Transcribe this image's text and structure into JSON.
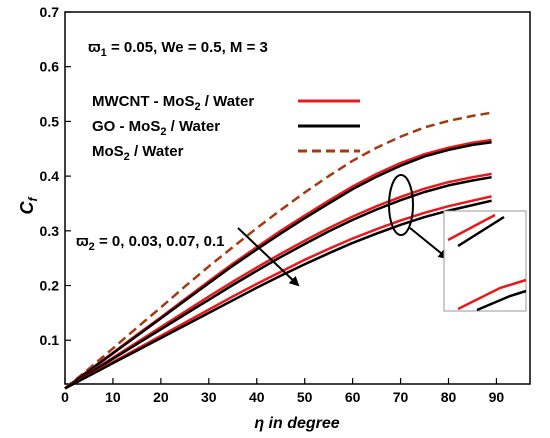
{
  "chart_data": {
    "type": "line",
    "xlabel": "η in degree",
    "ylabel_main": "C",
    "ylabel_sub": "f",
    "xlim": [
      0,
      97
    ],
    "ylim": [
      0.02,
      0.7
    ],
    "x_ticks": [
      "0",
      "10",
      "20",
      "30",
      "40",
      "50",
      "60",
      "70",
      "80",
      "90"
    ],
    "y_ticks": [
      "0.1",
      "0.2",
      "0.3",
      "0.4",
      "0.5",
      "0.6",
      "0.7"
    ],
    "grid": false,
    "legend_position": "upper-left",
    "annotation_params": {
      "a": "ϖ",
      "a_sub": "1",
      "b": " = 0.05, We = 0.5, M = 3"
    },
    "annotation_phi2": {
      "a": "ϖ",
      "a_sub": "2",
      "b": " = 0, 0.03, 0.07, 0.1"
    },
    "legend": [
      {
        "pre": "MWCNT - MoS",
        "sub": "2",
        "post": " / Water",
        "color": "#e8191c",
        "style": "solid"
      },
      {
        "pre": "GO - MoS",
        "sub": "2",
        "post": " / Water",
        "color": "#000000",
        "style": "solid"
      },
      {
        "pre": "MoS",
        "sub": "2",
        "post": " / Water",
        "color": "#a53a10",
        "style": "dashed"
      }
    ],
    "series": [
      {
        "name": "MoS2 / Water",
        "color": "#a53a10",
        "dash": true,
        "x": [
          0,
          5,
          10,
          15,
          20,
          25,
          30,
          35,
          40,
          45,
          50,
          55,
          60,
          65,
          70,
          75,
          80,
          85,
          89
        ],
        "y": [
          0.012,
          0.048,
          0.085,
          0.123,
          0.16,
          0.198,
          0.235,
          0.27,
          0.305,
          0.338,
          0.37,
          0.4,
          0.428,
          0.452,
          0.472,
          0.489,
          0.501,
          0.51,
          0.516
        ]
      },
      {
        "name": "MWCNT - MoS2 / Water",
        "color": "#e8191c",
        "x": [
          0,
          5,
          10,
          15,
          20,
          25,
          30,
          35,
          40,
          45,
          50,
          55,
          60,
          65,
          70,
          75,
          80,
          85,
          89
        ],
        "y": [
          0.012,
          0.045,
          0.077,
          0.11,
          0.142,
          0.175,
          0.208,
          0.24,
          0.27,
          0.3,
          0.328,
          0.355,
          0.381,
          0.404,
          0.424,
          0.44,
          0.452,
          0.461,
          0.466
        ]
      },
      {
        "name": "GO - MoS2 / Water",
        "color": "#000000",
        "x": [
          0,
          5,
          10,
          15,
          20,
          25,
          30,
          35,
          40,
          45,
          50,
          55,
          60,
          65,
          70,
          75,
          80,
          85,
          89
        ],
        "y": [
          0.012,
          0.044,
          0.076,
          0.108,
          0.14,
          0.172,
          0.204,
          0.236,
          0.266,
          0.295,
          0.323,
          0.35,
          0.376,
          0.399,
          0.419,
          0.436,
          0.448,
          0.457,
          0.462
        ]
      },
      {
        "name": "MWCNT - MoS2 / Water",
        "color": "#e8191c",
        "x": [
          0,
          5,
          10,
          15,
          20,
          25,
          30,
          35,
          40,
          45,
          50,
          55,
          60,
          65,
          70,
          75,
          80,
          85,
          89
        ],
        "y": [
          0.012,
          0.04,
          0.068,
          0.096,
          0.124,
          0.152,
          0.18,
          0.207,
          0.233,
          0.258,
          0.282,
          0.305,
          0.326,
          0.345,
          0.362,
          0.377,
          0.389,
          0.398,
          0.404
        ]
      },
      {
        "name": "GO - MoS2 / Water",
        "color": "#000000",
        "x": [
          0,
          5,
          10,
          15,
          20,
          25,
          30,
          35,
          40,
          45,
          50,
          55,
          60,
          65,
          70,
          75,
          80,
          85,
          89
        ],
        "y": [
          0.012,
          0.039,
          0.066,
          0.093,
          0.12,
          0.147,
          0.174,
          0.201,
          0.227,
          0.252,
          0.276,
          0.299,
          0.32,
          0.339,
          0.356,
          0.371,
          0.383,
          0.392,
          0.398
        ]
      },
      {
        "name": "MWCNT - MoS2 / Water",
        "color": "#e8191c",
        "x": [
          0,
          5,
          10,
          15,
          20,
          25,
          30,
          35,
          40,
          45,
          50,
          55,
          60,
          65,
          70,
          75,
          80,
          85,
          89
        ],
        "y": [
          0.012,
          0.036,
          0.06,
          0.084,
          0.108,
          0.132,
          0.156,
          0.18,
          0.203,
          0.225,
          0.247,
          0.267,
          0.286,
          0.303,
          0.319,
          0.333,
          0.345,
          0.355,
          0.363
        ]
      },
      {
        "name": "GO - MoS2 / Water",
        "color": "#000000",
        "x": [
          0,
          5,
          10,
          15,
          20,
          25,
          30,
          35,
          40,
          45,
          50,
          55,
          60,
          65,
          70,
          75,
          80,
          85,
          89
        ],
        "y": [
          0.012,
          0.035,
          0.058,
          0.081,
          0.104,
          0.127,
          0.15,
          0.173,
          0.196,
          0.218,
          0.239,
          0.259,
          0.278,
          0.295,
          0.311,
          0.325,
          0.337,
          0.347,
          0.355
        ]
      }
    ]
  }
}
